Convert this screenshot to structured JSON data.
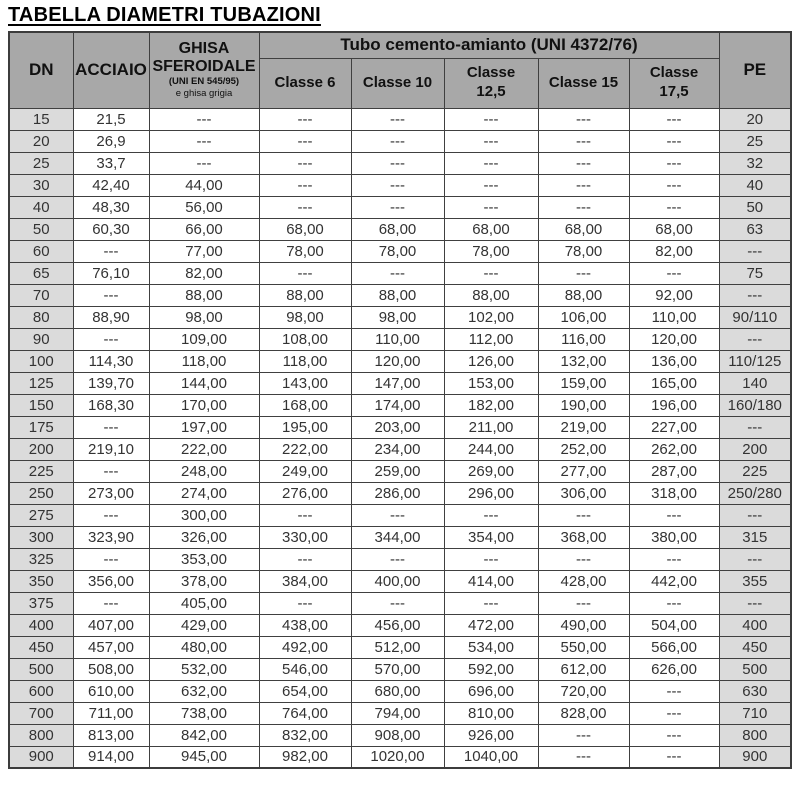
{
  "title": "TABELLA DIAMETRI TUBAZIONI",
  "colors": {
    "header_bg": "#a8a8a8",
    "shaded_cell_bg": "#dbdbdb",
    "border": "#404040",
    "text": "#333333"
  },
  "table": {
    "headers": {
      "dn": "DN",
      "acciaio": "ACCIAIO",
      "ghisa_line1": "GHISA",
      "ghisa_line2": "SFEROIDALE",
      "ghisa_sub1": "(UNI EN 545/95)",
      "ghisa_sub2": "e ghisa grigia",
      "cemento_group": "Tubo cemento-amianto (UNI 4372/76)",
      "classes": [
        "Classe 6",
        "Classe 10",
        "Classe\n12,5",
        "Classe 15",
        "Classe\n17,5"
      ],
      "pe": "PE"
    },
    "rows": [
      [
        "15",
        "21,5",
        "---",
        "---",
        "---",
        "---",
        "---",
        "---",
        "20"
      ],
      [
        "20",
        "26,9",
        "---",
        "---",
        "---",
        "---",
        "---",
        "---",
        "25"
      ],
      [
        "25",
        "33,7",
        "---",
        "---",
        "---",
        "---",
        "---",
        "---",
        "32"
      ],
      [
        "30",
        "42,40",
        "44,00",
        "---",
        "---",
        "---",
        "---",
        "---",
        "40"
      ],
      [
        "40",
        "48,30",
        "56,00",
        "---",
        "---",
        "---",
        "---",
        "---",
        "50"
      ],
      [
        "50",
        "60,30",
        "66,00",
        "68,00",
        "68,00",
        "68,00",
        "68,00",
        "68,00",
        "63"
      ],
      [
        "60",
        "---",
        "77,00",
        "78,00",
        "78,00",
        "78,00",
        "78,00",
        "82,00",
        "---"
      ],
      [
        "65",
        "76,10",
        "82,00",
        "---",
        "---",
        "---",
        "---",
        "---",
        "75"
      ],
      [
        "70",
        "---",
        "88,00",
        "88,00",
        "88,00",
        "88,00",
        "88,00",
        "92,00",
        "---"
      ],
      [
        "80",
        "88,90",
        "98,00",
        "98,00",
        "98,00",
        "102,00",
        "106,00",
        "110,00",
        "90/110"
      ],
      [
        "90",
        "---",
        "109,00",
        "108,00",
        "110,00",
        "112,00",
        "116,00",
        "120,00",
        "---"
      ],
      [
        "100",
        "114,30",
        "118,00",
        "118,00",
        "120,00",
        "126,00",
        "132,00",
        "136,00",
        "110/125"
      ],
      [
        "125",
        "139,70",
        "144,00",
        "143,00",
        "147,00",
        "153,00",
        "159,00",
        "165,00",
        "140"
      ],
      [
        "150",
        "168,30",
        "170,00",
        "168,00",
        "174,00",
        "182,00",
        "190,00",
        "196,00",
        "160/180"
      ],
      [
        "175",
        "---",
        "197,00",
        "195,00",
        "203,00",
        "211,00",
        "219,00",
        "227,00",
        "---"
      ],
      [
        "200",
        "219,10",
        "222,00",
        "222,00",
        "234,00",
        "244,00",
        "252,00",
        "262,00",
        "200"
      ],
      [
        "225",
        "---",
        "248,00",
        "249,00",
        "259,00",
        "269,00",
        "277,00",
        "287,00",
        "225"
      ],
      [
        "250",
        "273,00",
        "274,00",
        "276,00",
        "286,00",
        "296,00",
        "306,00",
        "318,00",
        "250/280"
      ],
      [
        "275",
        "---",
        "300,00",
        "---",
        "---",
        "---",
        "---",
        "---",
        "---"
      ],
      [
        "300",
        "323,90",
        "326,00",
        "330,00",
        "344,00",
        "354,00",
        "368,00",
        "380,00",
        "315"
      ],
      [
        "325",
        "---",
        "353,00",
        "---",
        "---",
        "---",
        "---",
        "---",
        "---"
      ],
      [
        "350",
        "356,00",
        "378,00",
        "384,00",
        "400,00",
        "414,00",
        "428,00",
        "442,00",
        "355"
      ],
      [
        "375",
        "---",
        "405,00",
        "---",
        "---",
        "---",
        "---",
        "---",
        "---"
      ],
      [
        "400",
        "407,00",
        "429,00",
        "438,00",
        "456,00",
        "472,00",
        "490,00",
        "504,00",
        "400"
      ],
      [
        "450",
        "457,00",
        "480,00",
        "492,00",
        "512,00",
        "534,00",
        "550,00",
        "566,00",
        "450"
      ],
      [
        "500",
        "508,00",
        "532,00",
        "546,00",
        "570,00",
        "592,00",
        "612,00",
        "626,00",
        "500"
      ],
      [
        "600",
        "610,00",
        "632,00",
        "654,00",
        "680,00",
        "696,00",
        "720,00",
        "---",
        "630"
      ],
      [
        "700",
        "711,00",
        "738,00",
        "764,00",
        "794,00",
        "810,00",
        "828,00",
        "---",
        "710"
      ],
      [
        "800",
        "813,00",
        "842,00",
        "832,00",
        "908,00",
        "926,00",
        "---",
        "---",
        "800"
      ],
      [
        "900",
        "914,00",
        "945,00",
        "982,00",
        "1020,00",
        "1040,00",
        "---",
        "---",
        "900"
      ]
    ]
  }
}
